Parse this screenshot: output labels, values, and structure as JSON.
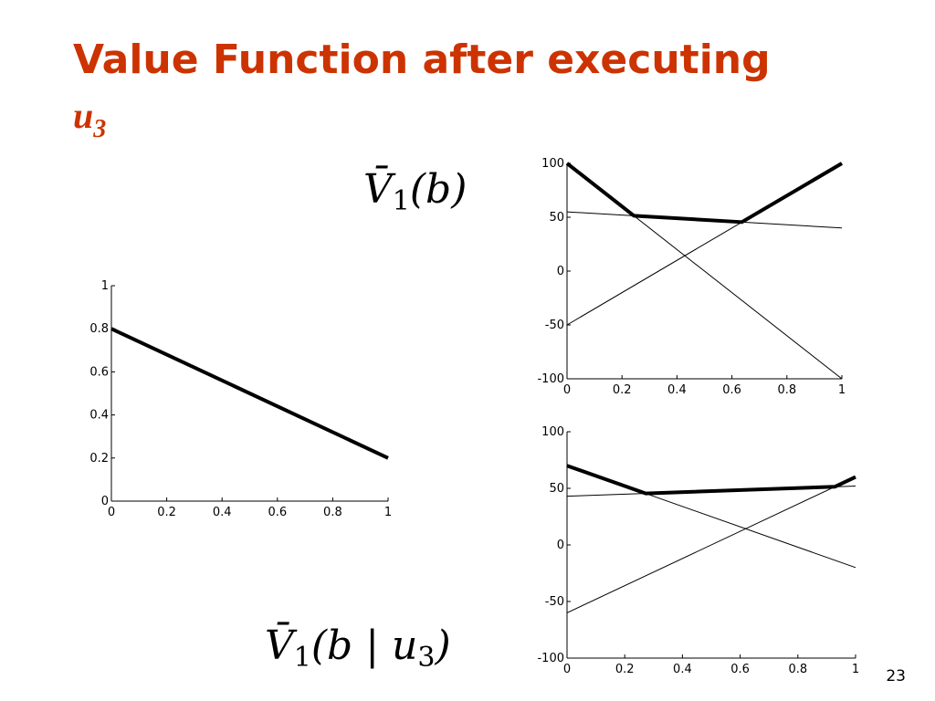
{
  "title": {
    "text": "Value Function after executing",
    "symbol": "u",
    "subscript": "3"
  },
  "page_number": 23,
  "chart_data": [
    {
      "type": "line",
      "xlim": [
        0,
        1
      ],
      "ylim": [
        0,
        1
      ],
      "xticks": [
        0,
        0.2,
        0.4,
        0.6,
        0.8,
        1
      ],
      "yticks": [
        0,
        0.2,
        0.4,
        0.6,
        0.8,
        1
      ],
      "series": [
        {
          "color": "#000000",
          "width": 4,
          "x": [
            0,
            1
          ],
          "values": [
            0.8,
            0.2
          ]
        }
      ]
    },
    {
      "type": "line",
      "xlim": [
        0,
        1
      ],
      "ylim": [
        -100,
        100
      ],
      "xticks": [
        0,
        0.2,
        0.4,
        0.6,
        0.8,
        1
      ],
      "yticks": [
        -100,
        -50,
        0,
        50,
        100
      ],
      "annotation": [
        "V̄",
        "1",
        "(b)"
      ],
      "series": [
        {
          "color": "#000000",
          "width": 1,
          "x": [
            0,
            1
          ],
          "values": [
            55,
            40
          ]
        },
        {
          "color": "#000000",
          "width": 1,
          "x": [
            0,
            1
          ],
          "values": [
            -50,
            100
          ]
        },
        {
          "color": "#000000",
          "width": 1,
          "x": [
            0,
            1
          ],
          "values": [
            100,
            -100
          ]
        },
        {
          "color": "#000000",
          "width": 4,
          "x": [
            0,
            0.243,
            0.636,
            1
          ],
          "values": [
            100,
            51.4,
            45.5,
            100
          ]
        }
      ]
    },
    {
      "type": "line",
      "xlim": [
        0,
        1
      ],
      "ylim": [
        -100,
        100
      ],
      "xticks": [
        0,
        0.2,
        0.4,
        0.6,
        0.8,
        1
      ],
      "yticks": [
        -100,
        -50,
        0,
        50,
        100
      ],
      "annotation": [
        "V̄",
        "1",
        "(b | u",
        "3",
        ")"
      ],
      "series": [
        {
          "color": "#000000",
          "width": 1,
          "x": [
            0,
            1
          ],
          "values": [
            43,
            52
          ]
        },
        {
          "color": "#000000",
          "width": 1,
          "x": [
            0,
            1
          ],
          "values": [
            -60,
            60
          ]
        },
        {
          "color": "#000000",
          "width": 1,
          "x": [
            0,
            1
          ],
          "values": [
            70,
            -20
          ]
        },
        {
          "color": "#000000",
          "width": 4,
          "x": [
            0,
            0.273,
            0.928,
            1
          ],
          "values": [
            70,
            45.5,
            51.4,
            60
          ]
        }
      ]
    }
  ]
}
